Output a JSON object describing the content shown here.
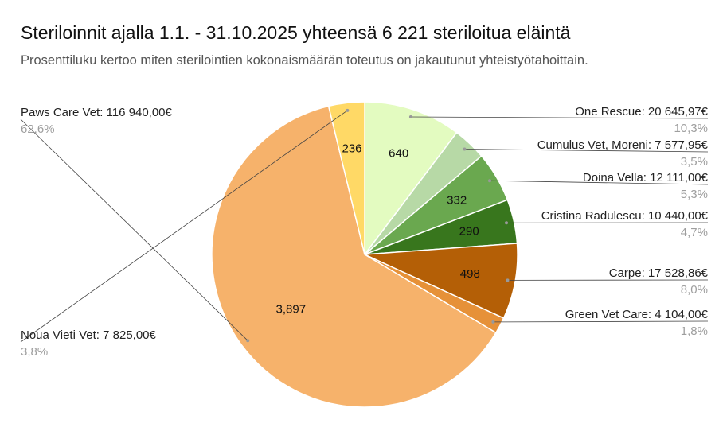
{
  "title": "Steriloinnit ajalla 1.1. - 31.10.2025 yhteensä 6 221 steriloitua eläintä",
  "subtitle": "Prosenttiluku kertoo miten sterilointien kokonaismäärän toteutus on jakautunut yhteistyötahoittain.",
  "chart_data": {
    "type": "pie",
    "title": "Steriloinnit ajalla 1.1. - 31.10.2025 yhteensä 6 221 steriloitua eläintä",
    "subtitle": "Prosenttiluku kertoo miten sterilointien kokonaismäärän toteutus on jakautunut yhteistyötahoittain.",
    "slices": [
      {
        "label": "One Rescue: 20 645,97€",
        "value": 640,
        "value_label": "640",
        "percent": "10,3%",
        "color": "#e3fbc0"
      },
      {
        "label": "Cumulus Vet, Moreni: 7 577,95€",
        "value": 221,
        "value_label": "",
        "percent": "3,5%",
        "color": "#b7d9a6"
      },
      {
        "label": "Doina Vella: 12 111,00€",
        "value": 332,
        "value_label": "332",
        "percent": "5,3%",
        "color": "#6aa84f"
      },
      {
        "label": "Cristina Radulescu: 10 440,00€",
        "value": 290,
        "value_label": "290",
        "percent": "4,7%",
        "color": "#38761d"
      },
      {
        "label": "Carpe: 17 528,86€",
        "value": 498,
        "value_label": "498",
        "percent": "8,0%",
        "color": "#b45f06"
      },
      {
        "label": "Green Vet Care: 4 104,00€",
        "value": 107,
        "value_label": "",
        "percent": "1,8%",
        "color": "#e69138"
      },
      {
        "label": "Paws Care Vet: 116 940,00€",
        "value": 3897,
        "value_label": "3,897",
        "percent": "62,6%",
        "color": "#f6b26b"
      },
      {
        "label": "Noua Vieti Vet: 7 825,00€",
        "value": 236,
        "value_label": "236",
        "percent": "3,8%",
        "color": "#ffd966"
      }
    ]
  }
}
